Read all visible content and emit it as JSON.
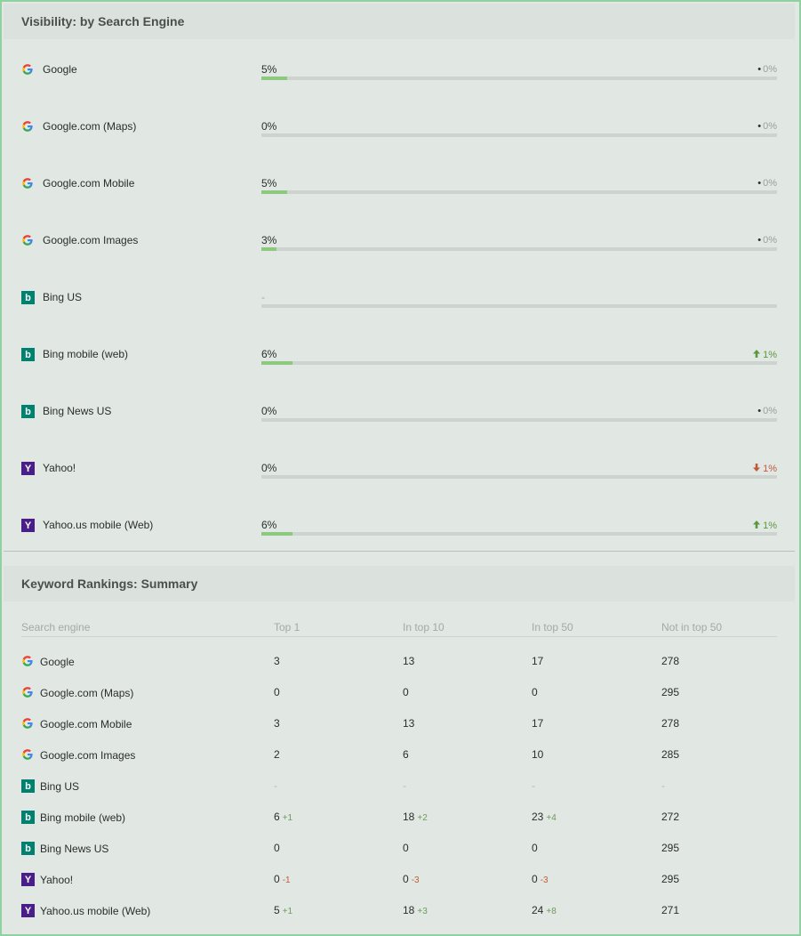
{
  "visibility": {
    "title": "Visibility: by Search Engine",
    "rows": [
      {
        "engine": "Google",
        "icon": "google-icon",
        "value": "5%",
        "fill": 5,
        "change": "0%",
        "dir": "none"
      },
      {
        "engine": "Google.com (Maps)",
        "icon": "google-icon",
        "value": "0%",
        "fill": 0,
        "change": "0%",
        "dir": "none"
      },
      {
        "engine": "Google.com Mobile",
        "icon": "google-icon",
        "value": "5%",
        "fill": 5,
        "change": "0%",
        "dir": "none"
      },
      {
        "engine": "Google.com Images",
        "icon": "google-icon",
        "value": "3%",
        "fill": 3,
        "change": "0%",
        "dir": "none"
      },
      {
        "engine": "Bing US",
        "icon": "bing-icon",
        "value": "-",
        "fill": 0,
        "change": "",
        "dir": "blank"
      },
      {
        "engine": "Bing mobile (web)",
        "icon": "bing-icon",
        "value": "6%",
        "fill": 6,
        "change": "1%",
        "dir": "up"
      },
      {
        "engine": "Bing News US",
        "icon": "bing-icon",
        "value": "0%",
        "fill": 0,
        "change": "0%",
        "dir": "none"
      },
      {
        "engine": "Yahoo!",
        "icon": "yahoo-icon",
        "value": "0%",
        "fill": 0,
        "change": "1%",
        "dir": "down"
      },
      {
        "engine": "Yahoo.us mobile (Web)",
        "icon": "yahoo-icon",
        "value": "6%",
        "fill": 6,
        "change": "1%",
        "dir": "up"
      }
    ]
  },
  "rankings": {
    "title": "Keyword Rankings: Summary",
    "headers": [
      "Search engine",
      "Top 1",
      "In top 10",
      "In top 50",
      "Not in top 50"
    ],
    "rows": [
      {
        "engine": "Google",
        "icon": "google-icon",
        "cells": [
          {
            "v": "3"
          },
          {
            "v": "13"
          },
          {
            "v": "17"
          },
          {
            "v": "278"
          }
        ]
      },
      {
        "engine": "Google.com (Maps)",
        "icon": "google-icon",
        "cells": [
          {
            "v": "0"
          },
          {
            "v": "0"
          },
          {
            "v": "0"
          },
          {
            "v": "295"
          }
        ]
      },
      {
        "engine": "Google.com Mobile",
        "icon": "google-icon",
        "cells": [
          {
            "v": "3"
          },
          {
            "v": "13"
          },
          {
            "v": "17"
          },
          {
            "v": "278"
          }
        ]
      },
      {
        "engine": "Google.com Images",
        "icon": "google-icon",
        "cells": [
          {
            "v": "2"
          },
          {
            "v": "6"
          },
          {
            "v": "10"
          },
          {
            "v": "285"
          }
        ]
      },
      {
        "engine": "Bing US",
        "icon": "bing-icon",
        "cells": [
          {
            "v": "-"
          },
          {
            "v": "-"
          },
          {
            "v": "-"
          },
          {
            "v": "-"
          }
        ]
      },
      {
        "engine": "Bing mobile (web)",
        "icon": "bing-icon",
        "cells": [
          {
            "v": "6",
            "d": "+1"
          },
          {
            "v": "18",
            "d": "+2"
          },
          {
            "v": "23",
            "d": "+4"
          },
          {
            "v": "272"
          }
        ]
      },
      {
        "engine": "Bing News US",
        "icon": "bing-icon",
        "cells": [
          {
            "v": "0"
          },
          {
            "v": "0"
          },
          {
            "v": "0"
          },
          {
            "v": "295"
          }
        ]
      },
      {
        "engine": "Yahoo!",
        "icon": "yahoo-icon",
        "cells": [
          {
            "v": "0",
            "d": "-1"
          },
          {
            "v": "0",
            "d": "-3"
          },
          {
            "v": "0",
            "d": "-3"
          },
          {
            "v": "295"
          }
        ]
      },
      {
        "engine": "Yahoo.us mobile (Web)",
        "icon": "yahoo-icon",
        "cells": [
          {
            "v": "5",
            "d": "+1"
          },
          {
            "v": "18",
            "d": "+3"
          },
          {
            "v": "24",
            "d": "+8"
          },
          {
            "v": "271"
          }
        ]
      }
    ]
  },
  "colors": {
    "bar_fill": "#8cc97f",
    "up": "#5a9a3c",
    "down": "#c25a3a",
    "bing": "#00806e",
    "yahoo": "#4a1e8a"
  }
}
